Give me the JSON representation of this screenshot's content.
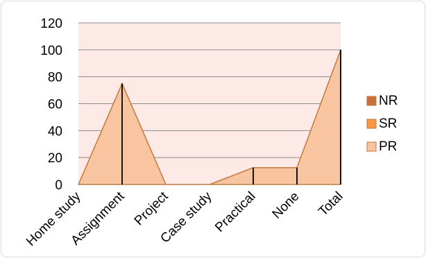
{
  "chart_data": {
    "type": "area",
    "title": "",
    "xlabel": "",
    "ylabel": "",
    "categories": [
      "Home study",
      "Assignment",
      "Project",
      "Case study",
      "Practical",
      "None",
      "Total"
    ],
    "ylim": [
      0,
      120
    ],
    "yticks": [
      0,
      20,
      40,
      60,
      80,
      100,
      120
    ],
    "series": [
      {
        "name": "NR",
        "values": [
          0,
          0,
          0,
          0,
          0,
          0,
          0
        ],
        "color": "#c9703a"
      },
      {
        "name": "SR",
        "values": [
          0,
          0,
          0,
          0,
          0,
          0,
          0
        ],
        "color": "#f79646"
      },
      {
        "name": "PR",
        "values": [
          0,
          75,
          0,
          0,
          12.5,
          12.5,
          100
        ],
        "color": "#f9c4a0"
      }
    ],
    "plot_area_color": "#fde9e5",
    "outline_color": "#c0793f",
    "grid": true,
    "legend_position": "right"
  }
}
